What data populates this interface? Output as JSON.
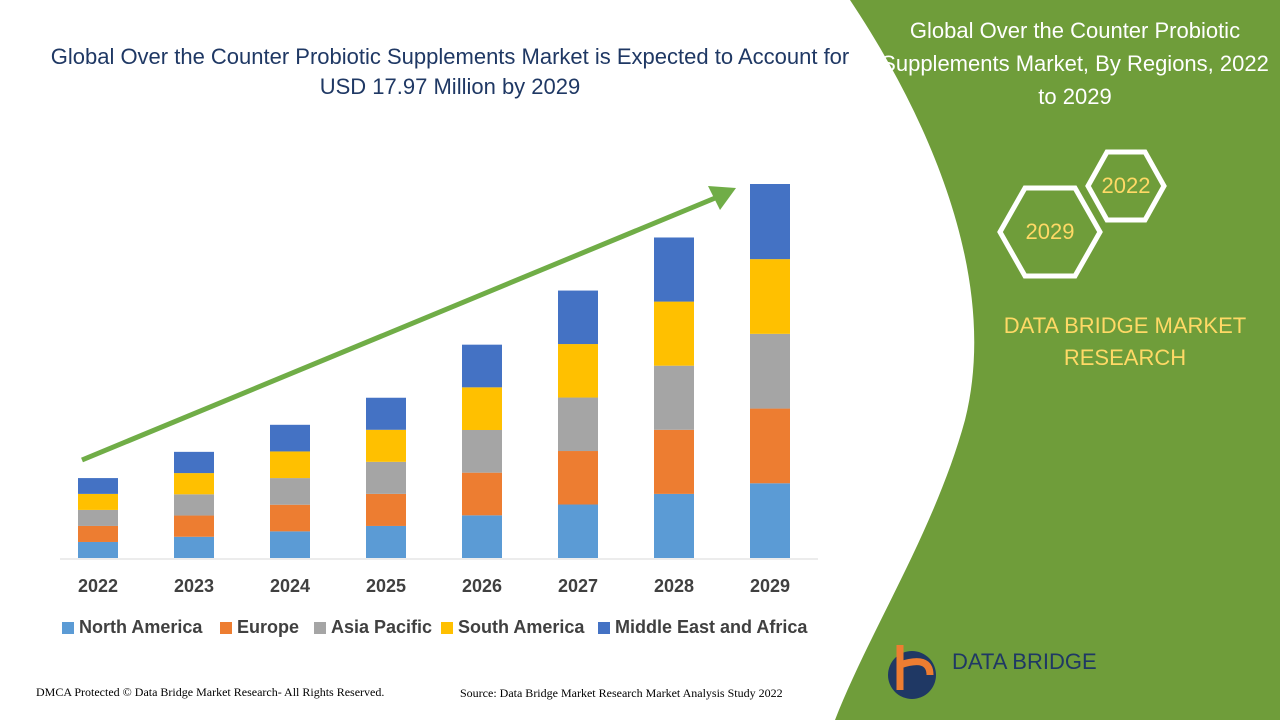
{
  "chart_data": {
    "type": "stacked-bar",
    "title": "Global Over the Counter Probiotic Supplements Market is Expected to Account for USD 17.97 Million by 2029",
    "categories": [
      "2022",
      "2023",
      "2024",
      "2025",
      "2026",
      "2027",
      "2028",
      "2029"
    ],
    "series": [
      {
        "name": "North America",
        "color": "#5b9bd5",
        "values": [
          0.77,
          1.02,
          1.28,
          1.54,
          2.05,
          2.57,
          3.08,
          3.59
        ]
      },
      {
        "name": "Europe",
        "color": "#ed7d31",
        "values": [
          0.77,
          1.02,
          1.28,
          1.54,
          2.05,
          2.57,
          3.08,
          3.59
        ]
      },
      {
        "name": "Asia Pacific",
        "color": "#a5a5a5",
        "values": [
          0.77,
          1.02,
          1.28,
          1.54,
          2.05,
          2.57,
          3.08,
          3.59
        ]
      },
      {
        "name": "South America",
        "color": "#ffc000",
        "values": [
          0.77,
          1.02,
          1.28,
          1.54,
          2.05,
          2.57,
          3.08,
          3.59
        ]
      },
      {
        "name": "Middle East and Africa",
        "color": "#4472c4",
        "values": [
          0.76,
          1.02,
          1.28,
          1.54,
          2.05,
          2.57,
          3.08,
          3.61
        ]
      }
    ]
  },
  "side_panel": {
    "title": "Global Over the Counter Probiotic Supplements Market, By Regions, 2022 to 2029",
    "hex_top": "2022",
    "hex_bottom": "2029",
    "brand": "DATA BRIDGE MARKET RESEARCH",
    "logo": "DATA BRIDGE"
  },
  "footer": {
    "copyright": "DMCA Protected © Data Bridge Market Research- All Rights Reserved.",
    "source": "Source: Data Bridge Market Research Market Analysis Study 2022"
  }
}
